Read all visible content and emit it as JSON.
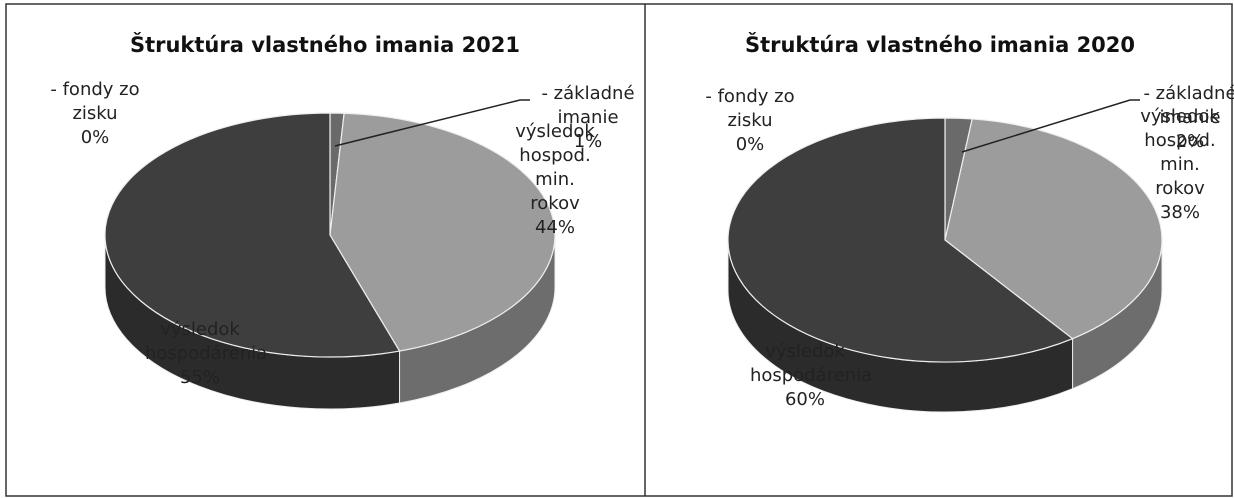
{
  "chart_data": [
    {
      "type": "pie",
      "title": "Štruktúra vlastného imania 2021",
      "categories": [
        "- fondy zo zisku",
        "- základné imanie",
        "výsledok hospod. min. rokov",
        "výsledok hospodárenia"
      ],
      "values": [
        0,
        1,
        44,
        55
      ],
      "value_labels": [
        "0%",
        "1%",
        "44%",
        "55%"
      ],
      "colors": [
        "#505050",
        "#6a6a6a",
        "#9c9c9c",
        "#3e3e3e"
      ]
    },
    {
      "type": "pie",
      "title": "Štruktúra vlastného imania 2020",
      "categories": [
        "- fondy zo zisku",
        "- základné imanie",
        "výsledok hospod. min. rokov",
        "výsledok hospodárenia"
      ],
      "values": [
        0,
        2,
        38,
        60
      ],
      "value_labels": [
        "0%",
        "2%",
        "38%",
        "60%"
      ],
      "colors": [
        "#505050",
        "#6a6a6a",
        "#9c9c9c",
        "#3e3e3e"
      ]
    }
  ]
}
